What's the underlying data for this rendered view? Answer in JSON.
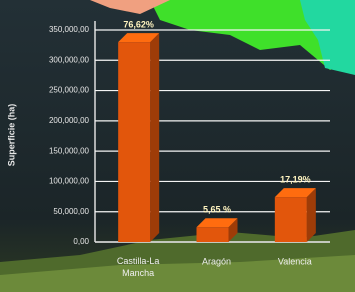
{
  "chart_data": {
    "type": "bar3d",
    "y_label": "Superficie (ha)",
    "categories": [
      "Castilla-La Mancha",
      "Aragón",
      "Valencia"
    ],
    "values": [
      330000,
      24300,
      74000
    ],
    "value_labels": [
      "76,62%",
      "5,65 %",
      "17,19%"
    ],
    "color": "#e2560c",
    "ylim": [
      0,
      350000
    ],
    "yticks": [
      {
        "value": 0,
        "label": "0,00"
      },
      {
        "value": 50000,
        "label": "50,000,00"
      },
      {
        "value": 100000,
        "label": "100,000,00"
      },
      {
        "value": 150000,
        "label": "150,000,00"
      },
      {
        "value": 200000,
        "label": "200,000,00"
      },
      {
        "value": 250000,
        "label": "250,000,00"
      },
      {
        "value": 300000,
        "label": "300,000,00"
      },
      {
        "value": 350000,
        "label": "350,000,00"
      }
    ],
    "grid": true
  }
}
